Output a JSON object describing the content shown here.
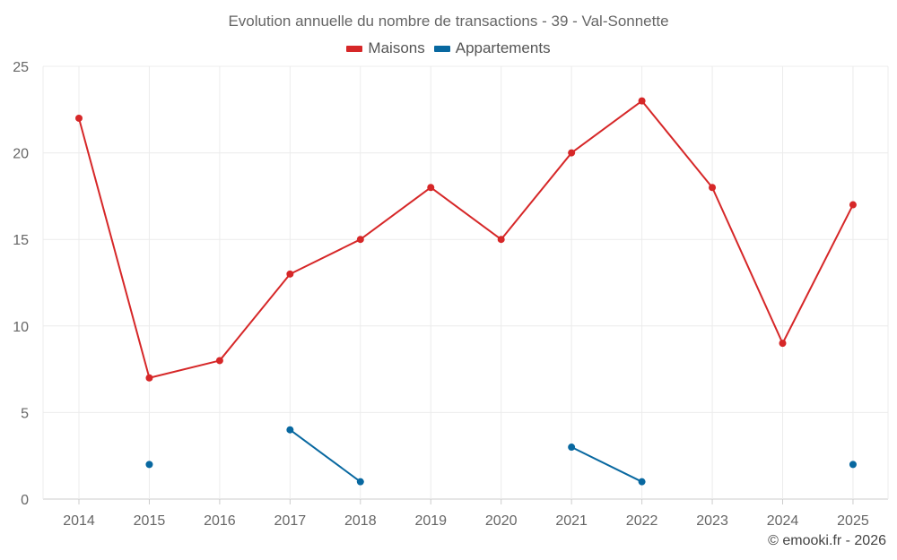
{
  "chart_data": {
    "type": "line",
    "title": "Evolution annuelle du nombre de transactions - 39 - Val-Sonnette",
    "categories": [
      "2014",
      "2015",
      "2016",
      "2017",
      "2018",
      "2019",
      "2020",
      "2021",
      "2022",
      "2023",
      "2024",
      "2025"
    ],
    "ylim": [
      0,
      25
    ],
    "yticks": [
      0,
      5,
      10,
      15,
      20,
      25
    ],
    "grid": true,
    "legend_position": "top-center",
    "series": [
      {
        "name": "Maisons",
        "color": "#d62728",
        "values": [
          22,
          7,
          8,
          13,
          15,
          18,
          15,
          20,
          23,
          18,
          9,
          17
        ]
      },
      {
        "name": "Appartements",
        "color": "#0868a0",
        "values": [
          null,
          2,
          null,
          4,
          1,
          null,
          null,
          3,
          1,
          null,
          null,
          2
        ]
      }
    ]
  },
  "footer": {
    "credit": "© emooki.fr - 2026"
  }
}
